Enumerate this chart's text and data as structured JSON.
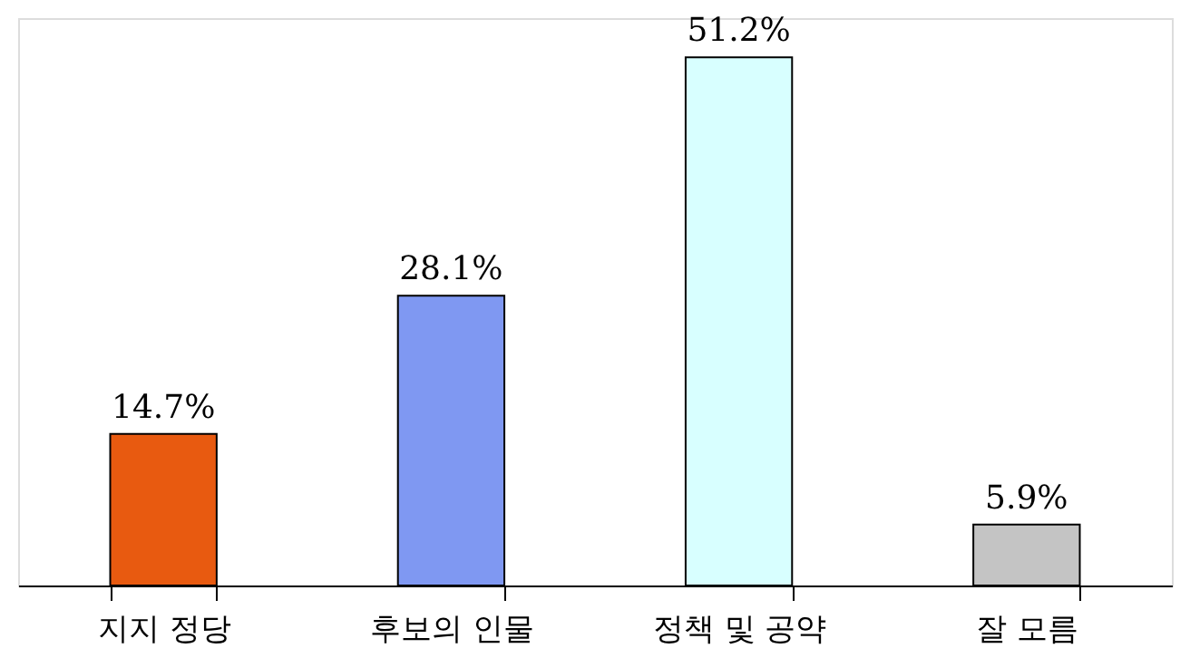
{
  "chart_data": {
    "type": "bar",
    "categories": [
      "지지 정당",
      "후보의 인물",
      "정책 및 공약",
      "잘 모름"
    ],
    "values": [
      14.7,
      28.1,
      51.2,
      5.9
    ],
    "colors": [
      "#e85a10",
      "#7f98f2",
      "#d8ffff",
      "#c4c4c4"
    ],
    "value_labels": [
      "14.7%",
      "28.1%",
      "51.2%",
      "5.9%"
    ],
    "grid": false,
    "legend": false
  }
}
